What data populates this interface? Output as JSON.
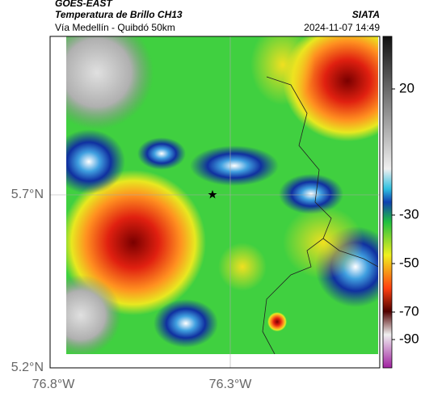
{
  "header": {
    "source": "GOES-EAST",
    "title": "Temperatura de Brillo CH13",
    "subtitle": "Vía Medellín - Quibdó 50km",
    "agency": "SIATA",
    "timestamp": "2024-11-07 14:49"
  },
  "axes": {
    "y_labels": [
      "5.7°N",
      "5.2°N"
    ],
    "x_labels": [
      "76.8°W",
      "76.3°W"
    ]
  },
  "colorbar": {
    "ticks": [
      "20",
      "-30",
      "-50",
      "-70",
      "-90"
    ]
  }
}
